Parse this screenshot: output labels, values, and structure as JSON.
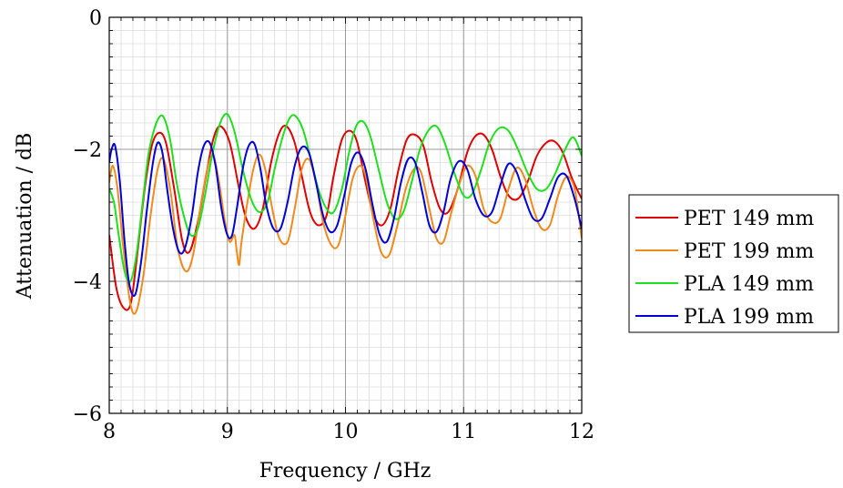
{
  "chart_data": {
    "type": "line",
    "xlabel": "Frequency / GHz",
    "ylabel": "Attenuation / dB",
    "xlim": [
      8,
      12
    ],
    "ylim": [
      -6,
      0
    ],
    "xticks": [
      8,
      9,
      10,
      11,
      12
    ],
    "yticks": [
      -6,
      -4,
      -2,
      0
    ],
    "ytick_labels": [
      "−6",
      "−4",
      "−2",
      "0"
    ],
    "grid": "major and minor",
    "legend_position": "right, outside plot",
    "series": [
      {
        "name": "PET 149 mm",
        "color": "#e00000",
        "x": [
          8.0,
          8.06,
          8.12,
          8.18,
          8.23,
          8.3,
          8.36,
          8.42,
          8.48,
          8.55,
          8.62,
          8.68,
          8.75,
          8.82,
          8.88,
          8.94,
          9.02,
          9.1,
          9.16,
          9.23,
          9.3,
          9.37,
          9.44,
          9.5,
          9.57,
          9.63,
          9.7,
          9.77,
          9.84,
          9.9,
          9.97,
          10.04,
          10.1,
          10.17,
          10.24,
          10.31,
          10.38,
          10.45,
          10.52,
          10.59,
          10.66,
          10.73,
          10.8,
          10.87,
          10.95,
          11.03,
          11.1,
          11.17,
          11.24,
          11.31,
          11.38,
          11.46,
          11.54,
          11.62,
          11.7,
          11.77,
          11.84,
          11.92,
          12.0
        ],
        "y": [
          -3.3,
          -4.1,
          -4.4,
          -4.35,
          -3.7,
          -2.6,
          -1.95,
          -1.75,
          -1.9,
          -2.6,
          -3.4,
          -3.55,
          -3.1,
          -2.4,
          -1.85,
          -1.65,
          -1.9,
          -2.6,
          -3.05,
          -3.2,
          -2.9,
          -2.2,
          -1.75,
          -1.65,
          -1.9,
          -2.4,
          -2.95,
          -3.15,
          -3.0,
          -2.4,
          -1.85,
          -1.72,
          -1.9,
          -2.5,
          -3.0,
          -3.15,
          -2.9,
          -2.3,
          -1.85,
          -1.78,
          -1.95,
          -2.5,
          -2.9,
          -2.95,
          -2.6,
          -2.05,
          -1.8,
          -1.78,
          -2.0,
          -2.4,
          -2.7,
          -2.75,
          -2.5,
          -2.1,
          -1.9,
          -1.88,
          -2.05,
          -2.45,
          -2.75
        ]
      },
      {
        "name": "PET 199 mm",
        "color": "#f08a1c",
        "x": [
          8.0,
          8.03,
          8.07,
          8.12,
          8.18,
          8.23,
          8.29,
          8.35,
          8.41,
          8.46,
          8.52,
          8.58,
          8.65,
          8.71,
          8.77,
          8.83,
          8.88,
          8.93,
          8.98,
          9.02,
          9.06,
          9.08,
          9.1,
          9.12,
          9.17,
          9.22,
          9.27,
          9.32,
          9.38,
          9.44,
          9.51,
          9.57,
          9.63,
          9.69,
          9.75,
          9.81,
          9.88,
          9.94,
          10.0,
          10.06,
          10.12,
          10.17,
          10.23,
          10.3,
          10.37,
          10.44,
          10.51,
          10.58,
          10.64,
          10.71,
          10.77,
          10.83,
          10.89,
          10.96,
          11.03,
          11.1,
          11.17,
          11.24,
          11.31,
          11.38,
          11.45,
          11.52,
          11.59,
          11.66,
          11.73,
          11.8,
          11.87,
          11.94,
          12.0
        ],
        "y": [
          -2.5,
          -2.25,
          -2.6,
          -3.5,
          -4.35,
          -4.45,
          -3.9,
          -3.0,
          -2.3,
          -2.15,
          -2.65,
          -3.5,
          -3.85,
          -3.6,
          -2.9,
          -2.3,
          -2.1,
          -2.5,
          -3.1,
          -3.4,
          -3.3,
          -3.55,
          -3.75,
          -3.4,
          -2.8,
          -2.3,
          -2.08,
          -2.3,
          -2.9,
          -3.35,
          -3.4,
          -2.9,
          -2.3,
          -2.15,
          -2.5,
          -3.1,
          -3.45,
          -3.45,
          -3.0,
          -2.45,
          -2.25,
          -2.4,
          -3.0,
          -3.55,
          -3.6,
          -3.15,
          -2.6,
          -2.3,
          -2.35,
          -2.9,
          -3.35,
          -3.4,
          -3.0,
          -2.55,
          -2.25,
          -2.4,
          -2.9,
          -3.1,
          -3.05,
          -2.6,
          -2.28,
          -2.45,
          -2.9,
          -3.2,
          -3.15,
          -2.7,
          -2.42,
          -2.6,
          -3.35
        ]
      },
      {
        "name": "PLA 149 mm",
        "color": "#1ee01e",
        "x": [
          8.0,
          8.04,
          8.08,
          8.13,
          8.18,
          8.23,
          8.28,
          8.33,
          8.38,
          8.43,
          8.47,
          8.52,
          8.57,
          8.63,
          8.69,
          8.75,
          8.81,
          8.87,
          8.93,
          8.98,
          9.02,
          9.07,
          9.13,
          9.2,
          9.27,
          9.34,
          9.4,
          9.47,
          9.53,
          9.58,
          9.64,
          9.7,
          9.77,
          9.84,
          9.9,
          9.97,
          10.03,
          10.09,
          10.15,
          10.21,
          10.28,
          10.35,
          10.42,
          10.49,
          10.56,
          10.63,
          10.7,
          10.77,
          10.84,
          10.92,
          11.0,
          11.07,
          11.15,
          11.22,
          11.3,
          11.38,
          11.46,
          11.54,
          11.62,
          11.7,
          11.78,
          11.86,
          11.93,
          12.0
        ],
        "y": [
          -2.6,
          -2.8,
          -3.3,
          -3.85,
          -4.0,
          -3.6,
          -2.85,
          -2.1,
          -1.7,
          -1.5,
          -1.55,
          -1.9,
          -2.5,
          -3.0,
          -3.3,
          -3.2,
          -2.7,
          -2.1,
          -1.65,
          -1.47,
          -1.52,
          -1.8,
          -2.3,
          -2.75,
          -2.95,
          -2.8,
          -2.3,
          -1.8,
          -1.52,
          -1.5,
          -1.7,
          -2.1,
          -2.6,
          -2.9,
          -2.95,
          -2.6,
          -2.05,
          -1.65,
          -1.58,
          -1.8,
          -2.3,
          -2.8,
          -3.05,
          -2.95,
          -2.5,
          -2.0,
          -1.72,
          -1.65,
          -1.9,
          -2.35,
          -2.7,
          -2.68,
          -2.3,
          -1.9,
          -1.68,
          -1.72,
          -2.0,
          -2.35,
          -2.6,
          -2.6,
          -2.35,
          -2.0,
          -1.82,
          -2.1
        ]
      },
      {
        "name": "PLA 199 mm",
        "color": "#0000d6",
        "x": [
          8.0,
          8.02,
          8.05,
          8.09,
          8.13,
          8.17,
          8.22,
          8.27,
          8.32,
          8.37,
          8.41,
          8.45,
          8.49,
          8.54,
          8.59,
          8.64,
          8.7,
          8.75,
          8.8,
          8.85,
          8.9,
          8.95,
          9.0,
          9.04,
          9.08,
          9.13,
          9.18,
          9.23,
          9.28,
          9.33,
          9.39,
          9.45,
          9.51,
          9.57,
          9.63,
          9.69,
          9.75,
          9.81,
          9.87,
          9.93,
          9.99,
          10.05,
          10.11,
          10.17,
          10.23,
          10.29,
          10.35,
          10.41,
          10.47,
          10.53,
          10.59,
          10.65,
          10.71,
          10.77,
          10.83,
          10.89,
          10.96,
          11.03,
          11.1,
          11.17,
          11.24,
          11.31,
          11.38,
          11.45,
          11.52,
          11.59,
          11.66,
          11.73,
          11.8,
          11.87,
          11.94,
          12.0
        ],
        "y": [
          -2.2,
          -2.0,
          -1.95,
          -2.5,
          -3.4,
          -4.05,
          -4.2,
          -3.7,
          -2.9,
          -2.2,
          -1.9,
          -2.05,
          -2.6,
          -3.2,
          -3.55,
          -3.5,
          -3.0,
          -2.35,
          -1.95,
          -1.9,
          -2.25,
          -2.9,
          -3.3,
          -3.3,
          -2.9,
          -2.3,
          -1.95,
          -1.92,
          -2.3,
          -2.85,
          -3.2,
          -3.2,
          -2.8,
          -2.25,
          -1.97,
          -2.05,
          -2.5,
          -3.0,
          -3.25,
          -3.15,
          -2.7,
          -2.2,
          -2.05,
          -2.3,
          -2.85,
          -3.3,
          -3.4,
          -3.05,
          -2.5,
          -2.15,
          -2.2,
          -2.65,
          -3.15,
          -3.25,
          -2.95,
          -2.45,
          -2.18,
          -2.3,
          -2.75,
          -3.0,
          -2.95,
          -2.55,
          -2.22,
          -2.35,
          -2.75,
          -3.05,
          -3.05,
          -2.75,
          -2.42,
          -2.4,
          -2.75,
          -3.2
        ]
      }
    ]
  }
}
